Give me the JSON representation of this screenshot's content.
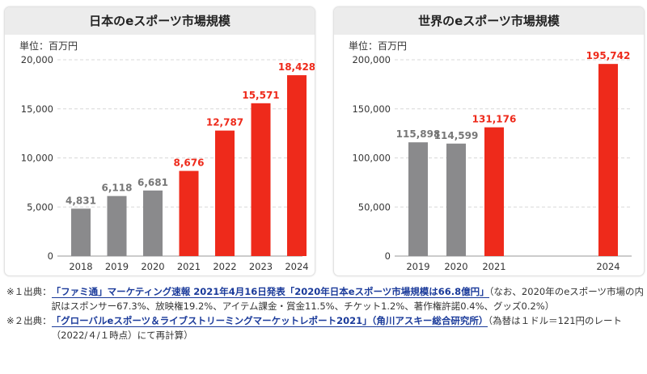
{
  "chart_data": [
    {
      "type": "bar",
      "title": "日本のeスポーツ市場規模",
      "unit_label": "単位：百万円",
      "categories": [
        "2018",
        "2019",
        "2020",
        "2021",
        "2022",
        "2023",
        "2024"
      ],
      "values": [
        4831,
        6118,
        6681,
        8676,
        12787,
        15571,
        18428
      ],
      "value_labels": [
        "4,831",
        "6,118",
        "6,681",
        "8,676",
        "12,787",
        "15,571",
        "18,428"
      ],
      "colors": [
        "#8a8a8c",
        "#8a8a8c",
        "#8a8a8c",
        "#ee2a1b",
        "#ee2a1b",
        "#ee2a1b",
        "#ee2a1b"
      ],
      "ylim": [
        0,
        20000
      ],
      "yticks": [
        "0",
        "5,000",
        "10,000",
        "15,000",
        "20,000"
      ],
      "grid": true
    },
    {
      "type": "bar",
      "title": "世界のeスポーツ市場規模",
      "unit_label": "単位：百万円",
      "categories": [
        "2019",
        "2020",
        "2021",
        "",
        "",
        "2024"
      ],
      "values": [
        115898,
        114599,
        131176,
        null,
        null,
        195742
      ],
      "value_labels": [
        "115,898",
        "114,599",
        "131,176",
        "",
        "",
        "195,742"
      ],
      "colors": [
        "#8a8a8c",
        "#8a8a8c",
        "#ee2a1b",
        "",
        "",
        "#ee2a1b"
      ],
      "ylim": [
        0,
        200000
      ],
      "yticks": [
        "0",
        "50,000",
        "100,000",
        "150,000",
        "200,000"
      ],
      "grid": true
    }
  ],
  "notes": [
    {
      "label": "※１出典：",
      "link": "「ファミ通」マーケティング速報 2021年4月16日発表「2020年日本eスポーツ市場規模は66.8億円」",
      "text": "（なお、2020年のeスポーツ市場の内訳はスポンサー67.3%、放映権19.2%、アイテム課金・賞金11.5%、チケット1.2%、著作権許諾0.4%、グッズ0.2%）"
    },
    {
      "label": "※２出典：",
      "link": "「グローバルeスポーツ＆ライブストリーミングマーケットレポート2021」（角川アスキー総合研究所）",
      "text": "（為替は１ドル＝121円のレート（2022/４/１時点）にて再計算）"
    }
  ]
}
